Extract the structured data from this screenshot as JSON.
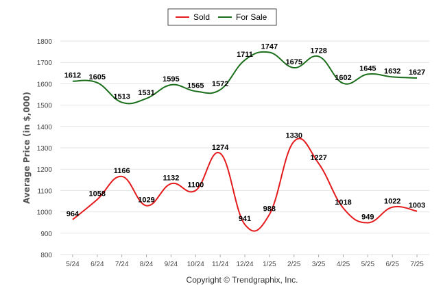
{
  "chart_data": {
    "type": "line",
    "categories": [
      "5/24",
      "6/24",
      "7/24",
      "8/24",
      "9/24",
      "10/24",
      "11/24",
      "12/24",
      "1/25",
      "2/25",
      "3/25",
      "4/25",
      "5/25",
      "6/25",
      "7/25"
    ],
    "series": [
      {
        "name": "Sold",
        "color": "#e41a1c",
        "values": [
          964,
          1058,
          1166,
          1029,
          1132,
          1100,
          1274,
          941,
          988,
          1330,
          1227,
          1018,
          949,
          1022,
          1003
        ]
      },
      {
        "name": "For Sale",
        "color": "#1a6e1a",
        "values": [
          1612,
          1605,
          1513,
          1531,
          1595,
          1565,
          1572,
          1711,
          1747,
          1675,
          1728,
          1602,
          1645,
          1632,
          1627
        ]
      }
    ],
    "title": "",
    "xlabel": "",
    "ylabel": "Average Price (in $,000)",
    "ylim": [
      800,
      1800
    ],
    "yticks": [
      800,
      900,
      1000,
      1100,
      1200,
      1300,
      1400,
      1500,
      1600,
      1700,
      1800
    ],
    "grid": true,
    "legend_position": "top-center"
  },
  "footer": {
    "copyright": "Copyright © Trendgraphix, Inc."
  }
}
